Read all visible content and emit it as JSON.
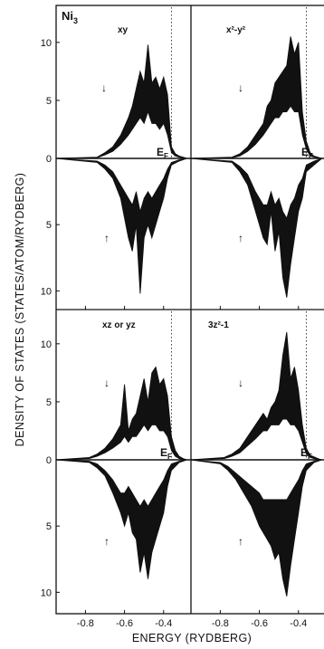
{
  "chart_data": {
    "type": "area",
    "title": "",
    "system_label": "Ni",
    "system_subscript": "3",
    "xlabel": "ENERGY (RYDBERG)",
    "ylabel": "DENSITY OF STATES (STATES/ATOM/RYDBERG)",
    "xlim": [
      -0.95,
      -0.26
    ],
    "ylim_upper": [
      0,
      11
    ],
    "ylim_lower": [
      0,
      11
    ],
    "x_ticks": [
      -0.8,
      -0.6,
      -0.4
    ],
    "x_tick_labels": [
      "-0.8",
      "-0.6",
      "-0.4"
    ],
    "y_ticks": [
      0,
      5,
      10
    ],
    "y_tick_labels": [
      "0",
      "5",
      "10"
    ],
    "grid": false,
    "spin_up_arrow": "↑",
    "spin_down_arrow": "↓",
    "fermi_label": "E",
    "fermi_sub": "F",
    "fermi_energy": -0.36,
    "panels": [
      {
        "orbital": "xy",
        "spin_down": {
          "x": [
            -0.95,
            -0.74,
            -0.7,
            -0.66,
            -0.62,
            -0.58,
            -0.56,
            -0.54,
            -0.52,
            -0.5,
            -0.48,
            -0.46,
            -0.44,
            -0.42,
            -0.4,
            -0.38,
            -0.36,
            -0.34,
            -0.32,
            -0.3,
            -0.28
          ],
          "total": [
            0,
            0.1,
            0.5,
            1.0,
            2.0,
            3.5,
            4.5,
            6.0,
            7.5,
            6.5,
            9.8,
            6.5,
            7.0,
            6.0,
            7.0,
            5.5,
            1.0,
            0.4,
            0.2,
            0.1,
            0
          ],
          "ni": [
            0,
            0.05,
            0.3,
            0.6,
            1.2,
            2.0,
            2.5,
            3.0,
            3.5,
            3.0,
            4.0,
            3.0,
            3.0,
            2.5,
            3.0,
            2.0,
            0.5,
            0.2,
            0.1,
            0,
            0
          ]
        },
        "spin_up": {
          "x": [
            -0.95,
            -0.74,
            -0.7,
            -0.66,
            -0.62,
            -0.6,
            -0.58,
            -0.56,
            -0.54,
            -0.52,
            -0.5,
            -0.48,
            -0.46,
            -0.44,
            -0.42,
            -0.4,
            -0.38,
            -0.36,
            -0.32,
            -0.28
          ],
          "total": [
            0,
            0.3,
            0.8,
            1.5,
            3.0,
            4.5,
            6.0,
            7.0,
            5.0,
            10.2,
            6.0,
            5.0,
            6.0,
            5.0,
            4.0,
            3.0,
            1.5,
            0.5,
            0.2,
            0
          ],
          "ni": [
            0,
            0.2,
            0.5,
            1.0,
            2.0,
            2.5,
            3.0,
            3.5,
            2.5,
            4.0,
            3.0,
            2.5,
            3.0,
            2.5,
            2.0,
            1.5,
            0.8,
            0.3,
            0.1,
            0
          ]
        }
      },
      {
        "orbital": "x²-y²",
        "spin_down": {
          "x": [
            -0.95,
            -0.74,
            -0.7,
            -0.66,
            -0.62,
            -0.58,
            -0.56,
            -0.54,
            -0.52,
            -0.5,
            -0.48,
            -0.46,
            -0.44,
            -0.42,
            -0.4,
            -0.38,
            -0.36,
            -0.34,
            -0.32,
            -0.28
          ],
          "total": [
            0,
            0.1,
            0.4,
            1.0,
            2.0,
            3.0,
            4.5,
            5.0,
            6.5,
            7.0,
            7.5,
            8.0,
            10.5,
            9.0,
            10.0,
            4.0,
            1.5,
            0.5,
            0.2,
            0
          ],
          "ni": [
            0,
            0.05,
            0.2,
            0.6,
            1.2,
            2.0,
            2.5,
            3.0,
            3.5,
            3.5,
            4.0,
            4.0,
            4.5,
            4.0,
            4.0,
            2.0,
            0.8,
            0.2,
            0.1,
            0
          ]
        },
        "spin_up": {
          "x": [
            -0.95,
            -0.74,
            -0.7,
            -0.66,
            -0.62,
            -0.58,
            -0.56,
            -0.54,
            -0.52,
            -0.5,
            -0.48,
            -0.46,
            -0.44,
            -0.42,
            -0.4,
            -0.38,
            -0.36,
            -0.32,
            -0.28
          ],
          "total": [
            0,
            0.3,
            1.0,
            2.0,
            4.0,
            6.0,
            6.5,
            4.0,
            7.0,
            5.5,
            9.0,
            10.5,
            8.0,
            6.0,
            4.0,
            3.0,
            1.0,
            0.5,
            0
          ],
          "ni": [
            0,
            0.2,
            0.6,
            1.2,
            2.5,
            3.5,
            3.5,
            2.5,
            3.5,
            3.0,
            4.0,
            4.5,
            3.5,
            3.0,
            2.0,
            1.5,
            0.5,
            0.2,
            0
          ]
        }
      },
      {
        "orbital": "xz or yz",
        "spin_down": {
          "x": [
            -0.95,
            -0.78,
            -0.74,
            -0.7,
            -0.66,
            -0.62,
            -0.6,
            -0.58,
            -0.56,
            -0.54,
            -0.52,
            -0.5,
            -0.48,
            -0.46,
            -0.44,
            -0.42,
            -0.4,
            -0.38,
            -0.36,
            -0.34,
            -0.32,
            -0.3,
            -0.28
          ],
          "total": [
            0,
            0.2,
            0.5,
            1.0,
            1.8,
            3.0,
            6.5,
            2.5,
            3.5,
            4.0,
            5.5,
            7.0,
            5.0,
            7.5,
            8.0,
            6.5,
            7.0,
            5.5,
            2.0,
            0.8,
            0.3,
            0.1,
            0
          ],
          "ni": [
            0,
            0.1,
            0.3,
            0.6,
            1.0,
            1.5,
            2.0,
            1.5,
            2.0,
            2.0,
            2.5,
            3.0,
            2.5,
            3.0,
            3.0,
            2.5,
            2.5,
            2.0,
            0.8,
            0.3,
            0.1,
            0,
            0
          ]
        },
        "spin_up": {
          "x": [
            -0.95,
            -0.78,
            -0.74,
            -0.7,
            -0.66,
            -0.62,
            -0.6,
            -0.58,
            -0.56,
            -0.54,
            -0.52,
            -0.5,
            -0.48,
            -0.46,
            -0.44,
            -0.42,
            -0.4,
            -0.38,
            -0.36,
            -0.32,
            -0.28
          ],
          "total": [
            0,
            0.2,
            0.6,
            1.2,
            2.5,
            4.0,
            5.0,
            4.0,
            5.5,
            6.0,
            8.5,
            7.0,
            9.0,
            7.0,
            6.0,
            5.0,
            4.0,
            2.0,
            0.8,
            0.2,
            0
          ],
          "ni": [
            0,
            0.1,
            0.3,
            0.8,
            1.5,
            2.5,
            2.5,
            2.0,
            2.5,
            3.0,
            3.5,
            3.0,
            3.5,
            3.0,
            2.5,
            2.0,
            1.5,
            0.8,
            0.3,
            0.1,
            0
          ]
        }
      },
      {
        "orbital": "3z²-1",
        "spin_down": {
          "x": [
            -0.95,
            -0.78,
            -0.74,
            -0.7,
            -0.66,
            -0.62,
            -0.58,
            -0.56,
            -0.54,
            -0.52,
            -0.5,
            -0.48,
            -0.46,
            -0.44,
            -0.42,
            -0.4,
            -0.38,
            -0.36,
            -0.34,
            -0.3,
            -0.28
          ],
          "total": [
            0,
            0.2,
            0.5,
            1.0,
            2.0,
            3.0,
            4.0,
            3.5,
            4.5,
            5.0,
            6.0,
            9.0,
            11.0,
            7.0,
            8.0,
            6.0,
            3.0,
            1.0,
            0.4,
            0.1,
            0
          ],
          "ni": [
            0,
            0.1,
            0.3,
            0.6,
            1.2,
            1.8,
            2.5,
            2.5,
            3.0,
            3.0,
            3.0,
            3.5,
            3.5,
            3.0,
            3.0,
            2.5,
            1.5,
            0.5,
            0.2,
            0,
            0
          ]
        },
        "spin_up": {
          "x": [
            -0.95,
            -0.8,
            -0.76,
            -0.72,
            -0.68,
            -0.64,
            -0.6,
            -0.58,
            -0.56,
            -0.54,
            -0.52,
            -0.5,
            -0.48,
            -0.46,
            -0.44,
            -0.42,
            -0.4,
            -0.38,
            -0.36,
            -0.32,
            -0.28
          ],
          "total": [
            0,
            0.3,
            0.8,
            1.5,
            2.5,
            3.5,
            5.0,
            5.5,
            6.0,
            6.5,
            7.5,
            7.0,
            9.0,
            10.3,
            8.0,
            6.0,
            4.0,
            2.0,
            0.8,
            0.2,
            0
          ],
          "ni": [
            0,
            0.2,
            0.5,
            1.0,
            1.5,
            2.0,
            2.5,
            3.0,
            3.0,
            3.0,
            3.0,
            3.0,
            3.0,
            3.0,
            2.5,
            2.0,
            1.5,
            0.8,
            0.3,
            0.1,
            0
          ]
        }
      }
    ]
  }
}
